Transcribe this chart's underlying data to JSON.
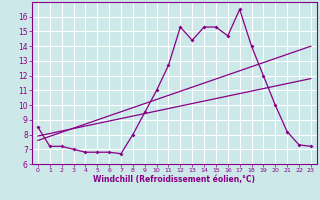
{
  "xlabel": "Windchill (Refroidissement éolien,°C)",
  "xlim": [
    -0.5,
    23.5
  ],
  "ylim": [
    6,
    17
  ],
  "yticks": [
    6,
    7,
    8,
    9,
    10,
    11,
    12,
    13,
    14,
    15,
    16
  ],
  "xticks": [
    0,
    1,
    2,
    3,
    4,
    5,
    6,
    7,
    8,
    9,
    10,
    11,
    12,
    13,
    14,
    15,
    16,
    17,
    18,
    19,
    20,
    21,
    22,
    23
  ],
  "bg_color": "#cce8e8",
  "line_color": "#880088",
  "line1_x": [
    0,
    1,
    2,
    3,
    4,
    5,
    6,
    7,
    8,
    9,
    10,
    11,
    12,
    13,
    14,
    15,
    16,
    17,
    18,
    19,
    20,
    21,
    22,
    23
  ],
  "line1_y": [
    8.5,
    7.2,
    7.2,
    7.0,
    6.8,
    6.8,
    6.8,
    6.7,
    8.0,
    9.5,
    11.0,
    12.7,
    15.3,
    14.4,
    15.3,
    15.3,
    14.7,
    16.5,
    14.0,
    12.0,
    10.0,
    8.2,
    7.3,
    7.2
  ],
  "line2_x": [
    0,
    23
  ],
  "line2_y": [
    7.6,
    14.0
  ],
  "line3_x": [
    0,
    23
  ],
  "line3_y": [
    7.9,
    11.8
  ],
  "font_color": "#880088"
}
